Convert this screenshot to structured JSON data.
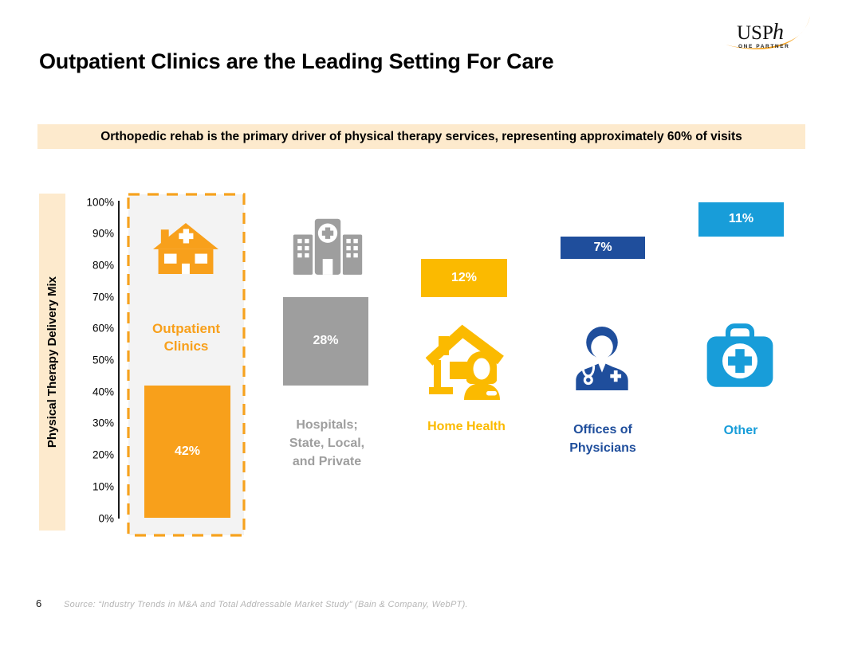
{
  "header": {
    "title": "Outpatient Clinics are the Leading Setting For Care",
    "logo": {
      "text_main": "USP",
      "text_italic": "h",
      "tagline": "ONE PARTNER",
      "swoosh_color": "#F6A21E"
    }
  },
  "banner": {
    "text": "Orthopedic rehab is the primary driver of physical therapy services, representing approximately 60% of visits",
    "bg_color": "#FDEACD"
  },
  "chart_data": {
    "type": "bar",
    "variant": "stacked-segments-offset-columns",
    "title": "",
    "xlabel": "",
    "ylabel": "Physical Therapy Delivery Mix",
    "ylim": [
      0,
      100
    ],
    "ytick_values": [
      100,
      90,
      80,
      70,
      60,
      50,
      40,
      30,
      20,
      10,
      0
    ],
    "ytick_suffix": "%",
    "grid": false,
    "categories": [
      "Outpatient Clinics",
      "Hospitals; State, Local, and Private",
      "Home Health",
      "Offices of Physicians",
      "Other"
    ],
    "segments": [
      {
        "category": "Outpatient Clinics",
        "category_lines": "Outpatient\nClinics",
        "value": 42,
        "value_label": "42%",
        "stack_start": 0,
        "color": "#F8A01B",
        "icon": "clinic-icon",
        "highlighted": true
      },
      {
        "category": "Hospitals; State, Local, and Private",
        "category_lines": "Hospitals;\nState, Local,\nand Private",
        "value": 28,
        "value_label": "28%",
        "stack_start": 42,
        "color": "#9E9E9E",
        "icon": "hospital-icon",
        "highlighted": false
      },
      {
        "category": "Home Health",
        "category_lines": "Home Health",
        "value": 12,
        "value_label": "12%",
        "stack_start": 70,
        "color": "#FBBA00",
        "icon": "home-health-icon",
        "highlighted": false
      },
      {
        "category": "Offices of Physicians",
        "category_lines": "Offices of\nPhysicians",
        "value": 7,
        "value_label": "7%",
        "stack_start": 82,
        "color": "#1F4E9C",
        "icon": "doctor-icon",
        "highlighted": false
      },
      {
        "category": "Other",
        "category_lines": "Other",
        "value": 11,
        "value_label": "11%",
        "stack_start": 89,
        "color": "#189DD9",
        "icon": "medical-bag-icon",
        "highlighted": false
      }
    ],
    "highlight_box_color": "#F6A21E"
  },
  "footer": {
    "page_number": "6",
    "source": "Source: “Industry Trends in M&A and Total Addressable Market Study” (Bain & Company, WebPT)."
  }
}
